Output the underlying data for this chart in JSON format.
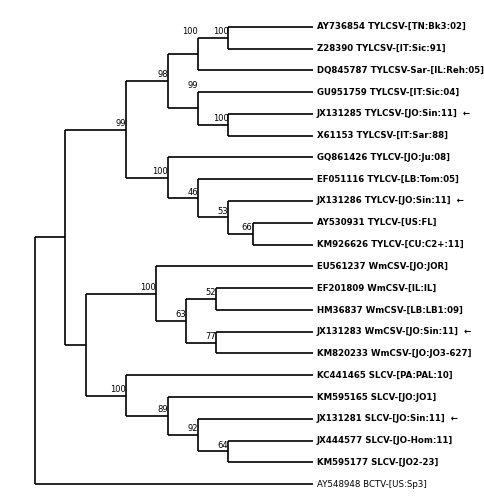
{
  "figsize": [
    4.84,
    5.0
  ],
  "dpi": 100,
  "bg_color": "#ffffff",
  "line_color": "#000000",
  "line_width": 1.2,
  "font_size": 6.2,
  "bootstrap_font_size": 6.0,
  "taxa": [
    {
      "label": "AY736854 TYLCSV-[TN:Bk3:02]",
      "y": 1,
      "arrow": false,
      "bold": true
    },
    {
      "label": "Z28390 TYLCSV-[IT:Sic:91]",
      "y": 2,
      "arrow": false,
      "bold": true
    },
    {
      "label": "DQ845787 TYLCSV-Sar-[IL:Reh:05]",
      "y": 3,
      "arrow": false,
      "bold": true
    },
    {
      "label": "GU951759 TYLCSV-[IT:Sic:04]",
      "y": 4,
      "arrow": false,
      "bold": true
    },
    {
      "label": "JX131285 TYLCSV-[JO:Sin:11]",
      "y": 5,
      "arrow": true,
      "bold": true
    },
    {
      "label": "X61153 TYLCSV-[IT:Sar:88]",
      "y": 6,
      "arrow": false,
      "bold": true
    },
    {
      "label": "GQ861426 TYLCV-[JO:Ju:08]",
      "y": 7,
      "arrow": false,
      "bold": true
    },
    {
      "label": "EF051116 TYLCV-[LB:Tom:05]",
      "y": 8,
      "arrow": false,
      "bold": true
    },
    {
      "label": "JX131286 TYLCV-[JO:Sin:11]",
      "y": 9,
      "arrow": true,
      "bold": true
    },
    {
      "label": "AY530931 TYLCV-[US:FL]",
      "y": 10,
      "arrow": false,
      "bold": true
    },
    {
      "label": "KM926626 TYLCV-[CU:C2+:11]",
      "y": 11,
      "arrow": false,
      "bold": true
    },
    {
      "label": "EU561237 WmCSV-[JO:JOR]",
      "y": 12,
      "arrow": false,
      "bold": true
    },
    {
      "label": "EF201809 WmCSV-[IL:IL]",
      "y": 13,
      "arrow": false,
      "bold": true
    },
    {
      "label": "HM36837 WmCSV-[LB:LB1:09]",
      "y": 14,
      "arrow": false,
      "bold": true
    },
    {
      "label": "JX131283 WmCSV-[JO:Sin:11]",
      "y": 15,
      "arrow": true,
      "bold": true
    },
    {
      "label": "KM820233 WmCSV-[JO:JO3-627]",
      "y": 16,
      "arrow": false,
      "bold": true
    },
    {
      "label": "KC441465 SLCV-[PA:PAL:10]",
      "y": 17,
      "arrow": false,
      "bold": true
    },
    {
      "label": "KM595165 SLCV-[JO:JO1]",
      "y": 18,
      "arrow": false,
      "bold": true
    },
    {
      "label": "JX131281 SLCV-[JO:Sin:11]",
      "y": 19,
      "arrow": true,
      "bold": true
    },
    {
      "label": "JX444577 SLCV-[JO-Hom:11]",
      "y": 20,
      "arrow": false,
      "bold": true
    },
    {
      "label": "KM595177 SLCV-[JO2-23]",
      "y": 21,
      "arrow": false,
      "bold": true
    },
    {
      "label": "AY548948 BCTV-[US:Sp3]",
      "y": 22,
      "arrow": false,
      "bold": false
    }
  ]
}
